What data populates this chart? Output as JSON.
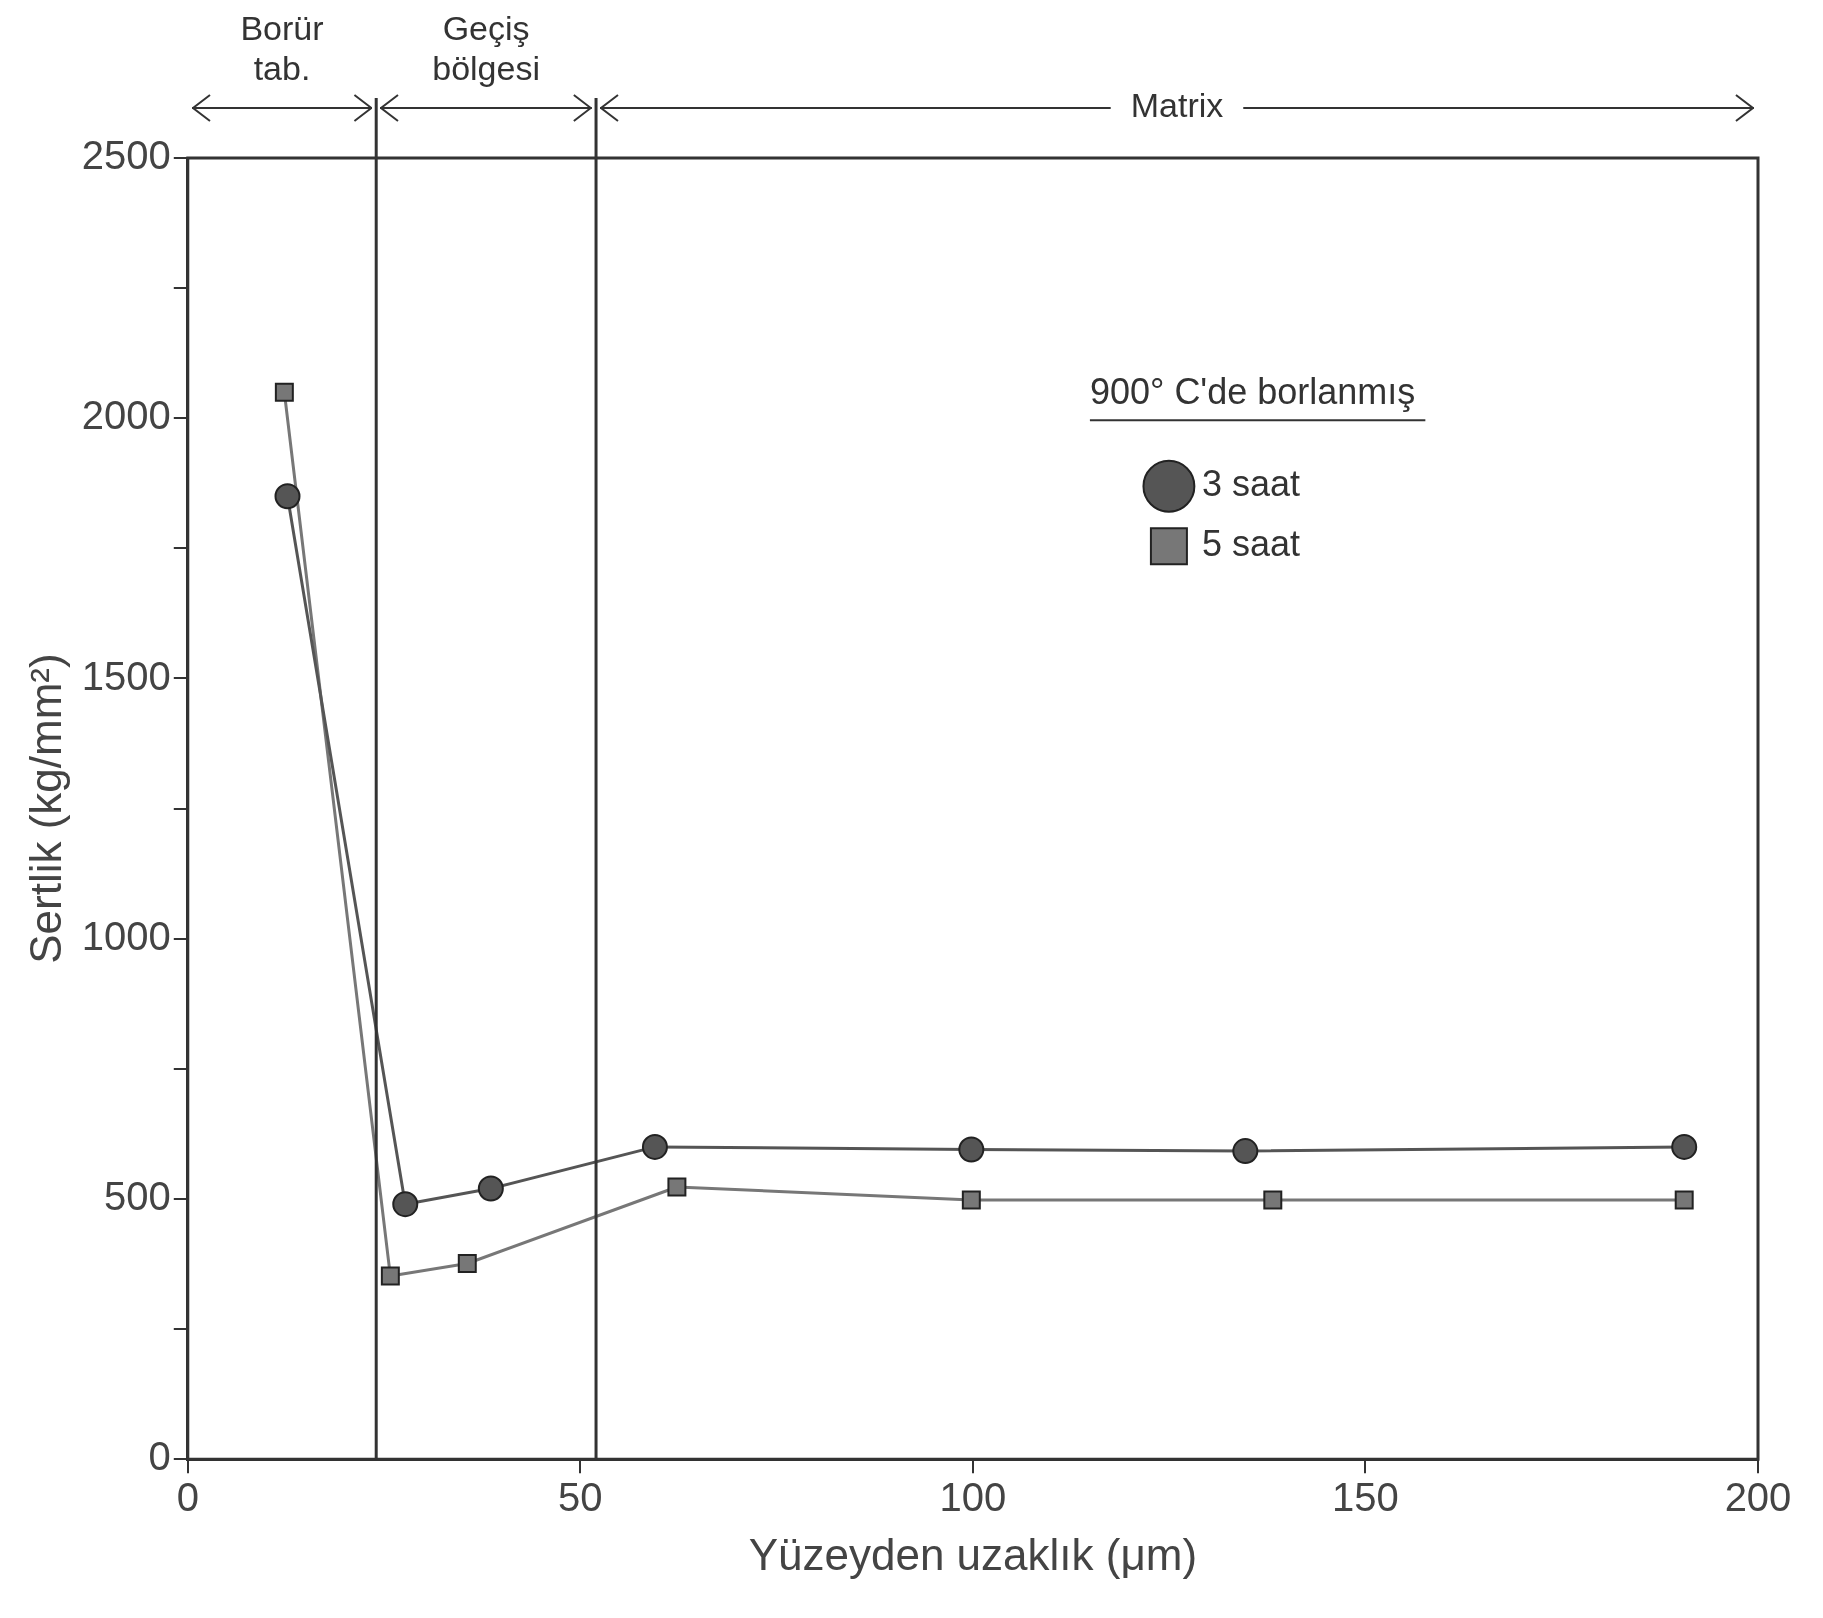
{
  "chart_data": {
    "type": "line",
    "xlabel": "Yüzeyden uzaklık (μm)",
    "ylabel": "Sertlik (kg/mm²)",
    "legend_title": "900° C'de borlanmış",
    "legend": "right",
    "grid": false,
    "xlim": [
      0,
      200
    ],
    "xticks": [
      0,
      50,
      100,
      150,
      200
    ],
    "ylim": [
      0,
      2500
    ],
    "yticks": [
      0,
      {
        "value": 250,
        "label": null
      },
      500,
      {
        "value": 750,
        "label": null
      },
      1000,
      {
        "value": 1250,
        "label": null
      },
      1500,
      {
        "value": 1750,
        "label": null
      },
      2000,
      {
        "value": 2250,
        "label": null
      },
      2500
    ],
    "ref_lines": [
      {
        "axis": "x",
        "value": 24,
        "color": "#333333"
      },
      {
        "axis": "x",
        "value": 52,
        "color": "#333333"
      }
    ],
    "annotations": [
      "Borür tab.",
      "Geçiş bölgesi",
      "Matrix"
    ],
    "series": [
      {
        "name": "3 saat",
        "color": "#555555",
        "marker": "circle",
        "x": [
          12.7,
          27.7,
          38.6,
          59.5,
          99.8,
          134.7,
          190.6
        ],
        "values": [
          1850,
          490,
          520,
          600,
          595,
          592,
          600
        ]
      },
      {
        "name": "5 saat",
        "color": "#777777",
        "marker": "square",
        "x": [
          12.3,
          25.8,
          35.6,
          62.3,
          99.8,
          138.2,
          190.6
        ],
        "values": [
          2050,
          352,
          376,
          523,
          498,
          498,
          498
        ]
      }
    ]
  }
}
